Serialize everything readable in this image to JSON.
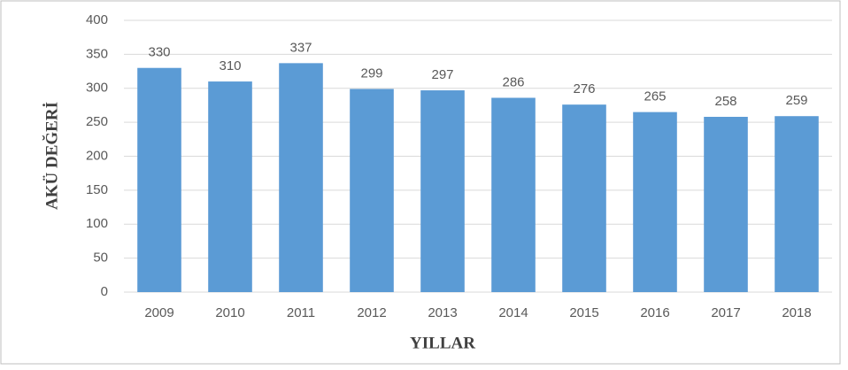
{
  "chart_data": {
    "type": "bar",
    "categories": [
      "2009",
      "2010",
      "2011",
      "2012",
      "2013",
      "2014",
      "2015",
      "2016",
      "2017",
      "2018"
    ],
    "values": [
      330,
      310,
      337,
      299,
      297,
      286,
      276,
      265,
      258,
      259
    ],
    "color": "#5b9bd5",
    "xlabel": "YILLAR",
    "ylabel": "AKÜ DEĞERİ",
    "ylim": [
      0,
      400
    ],
    "yticks": [
      0,
      50,
      100,
      150,
      200,
      250,
      300,
      350,
      400
    ],
    "grid": true
  }
}
